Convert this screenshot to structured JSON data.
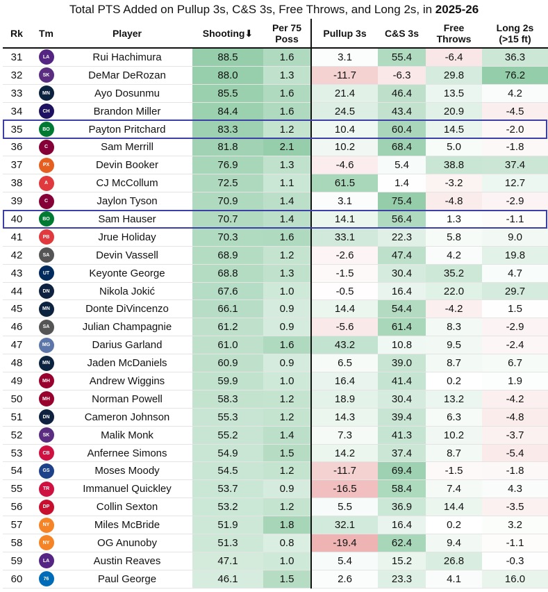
{
  "title_main": "Total PTS Added on Pullup 3s, C&S 3s, Free Throws, and Long 2s, in ",
  "title_season": "2025-26",
  "columns": [
    "Rk",
    "Tm",
    "Player",
    "Shooting⬇",
    "Per 75 Poss",
    "Pullup 3s",
    "C&S 3s",
    "Free Throws",
    "Long 2s (>15 ft)"
  ],
  "highlighted_players": [
    "Payton Pritchard",
    "Sam Hauser"
  ],
  "team_colors": {
    "LAL": "#552583",
    "SAC": "#5a2d81",
    "MIN": "#0c2340",
    "CHA": "#1d1160",
    "BOS": "#007a33",
    "CLE": "#860038",
    "PHX": "#e56020",
    "ATL": "#e03a3e",
    "POR": "#e03a3e",
    "SAS": "#555555",
    "UTA": "#002b5c",
    "DEN": "#0e2240",
    "MEM": "#5d76a9",
    "DAL": "#00538c",
    "MIA": "#98002e",
    "CHI": "#ce1141",
    "GSW": "#1d428a",
    "TOR": "#ce1141",
    "DET": "#c8102e",
    "NYK": "#f58426",
    "PHI": "#006bb6"
  },
  "chart_data": {
    "type": "table",
    "title": "Total PTS Added on Pullup 3s, C&S 3s, Free Throws, and Long 2s, in 2025-26",
    "sort_column": "Shooting",
    "rows": [
      {
        "rk": 31,
        "team": "LAL",
        "player": "Rui Hachimura",
        "shooting": 88.5,
        "per75": 1.6,
        "pullup3": 3.1,
        "cs3": 55.4,
        "ft": -6.4,
        "long2": 36.3
      },
      {
        "rk": 32,
        "team": "SAC",
        "player": "DeMar DeRozan",
        "shooting": 88.0,
        "per75": 1.3,
        "pullup3": -11.7,
        "cs3": -6.3,
        "ft": 29.8,
        "long2": 76.2
      },
      {
        "rk": 33,
        "team": "MIN",
        "player": "Ayo Dosunmu",
        "shooting": 85.5,
        "per75": 1.6,
        "pullup3": 21.4,
        "cs3": 46.4,
        "ft": 13.5,
        "long2": 4.2
      },
      {
        "rk": 34,
        "team": "CHA",
        "player": "Brandon Miller",
        "shooting": 84.4,
        "per75": 1.6,
        "pullup3": 24.5,
        "cs3": 43.4,
        "ft": 20.9,
        "long2": -4.5
      },
      {
        "rk": 35,
        "team": "BOS",
        "player": "Payton Pritchard",
        "shooting": 83.3,
        "per75": 1.2,
        "pullup3": 10.4,
        "cs3": 60.4,
        "ft": 14.5,
        "long2": -2.0
      },
      {
        "rk": 36,
        "team": "CLE",
        "player": "Sam Merrill",
        "shooting": 81.8,
        "per75": 2.1,
        "pullup3": 10.2,
        "cs3": 68.4,
        "ft": 5.0,
        "long2": -1.8
      },
      {
        "rk": 37,
        "team": "PHX",
        "player": "Devin Booker",
        "shooting": 76.9,
        "per75": 1.3,
        "pullup3": -4.6,
        "cs3": 5.4,
        "ft": 38.8,
        "long2": 37.4
      },
      {
        "rk": 38,
        "team": "ATL",
        "player": "CJ McCollum",
        "shooting": 72.5,
        "per75": 1.1,
        "pullup3": 61.5,
        "cs3": 1.4,
        "ft": -3.2,
        "long2": 12.7
      },
      {
        "rk": 39,
        "team": "CLE",
        "player": "Jaylon Tyson",
        "shooting": 70.9,
        "per75": 1.4,
        "pullup3": 3.1,
        "cs3": 75.4,
        "ft": -4.8,
        "long2": -2.9
      },
      {
        "rk": 40,
        "team": "BOS",
        "player": "Sam Hauser",
        "shooting": 70.7,
        "per75": 1.4,
        "pullup3": 14.1,
        "cs3": 56.4,
        "ft": 1.3,
        "long2": -1.1
      },
      {
        "rk": 41,
        "team": "POR",
        "player": "Jrue Holiday",
        "shooting": 70.3,
        "per75": 1.6,
        "pullup3": 33.1,
        "cs3": 22.3,
        "ft": 5.8,
        "long2": 9.0
      },
      {
        "rk": 42,
        "team": "SAS",
        "player": "Devin Vassell",
        "shooting": 68.9,
        "per75": 1.2,
        "pullup3": -2.6,
        "cs3": 47.4,
        "ft": 4.2,
        "long2": 19.8
      },
      {
        "rk": 43,
        "team": "UTA",
        "player": "Keyonte George",
        "shooting": 68.8,
        "per75": 1.3,
        "pullup3": -1.5,
        "cs3": 30.4,
        "ft": 35.2,
        "long2": 4.7
      },
      {
        "rk": 44,
        "team": "DEN",
        "player": "Nikola Jokić",
        "shooting": 67.6,
        "per75": 1.0,
        "pullup3": -0.5,
        "cs3": 16.4,
        "ft": 22.0,
        "long2": 29.7
      },
      {
        "rk": 45,
        "team": "MIN",
        "player": "Donte DiVincenzo",
        "shooting": 66.1,
        "per75": 0.9,
        "pullup3": 14.4,
        "cs3": 54.4,
        "ft": -4.2,
        "long2": 1.5
      },
      {
        "rk": 46,
        "team": "SAS",
        "player": "Julian Champagnie",
        "shooting": 61.2,
        "per75": 0.9,
        "pullup3": -5.6,
        "cs3": 61.4,
        "ft": 8.3,
        "long2": -2.9
      },
      {
        "rk": 47,
        "team": "MEM",
        "player": "Darius Garland",
        "shooting": 61.0,
        "per75": 1.6,
        "pullup3": 43.2,
        "cs3": 10.8,
        "ft": 9.5,
        "long2": -2.4
      },
      {
        "rk": 48,
        "team": "MIN",
        "player": "Jaden McDaniels",
        "shooting": 60.9,
        "per75": 0.9,
        "pullup3": 6.5,
        "cs3": 39.0,
        "ft": 8.7,
        "long2": 6.7
      },
      {
        "rk": 49,
        "team": "MIA",
        "player": "Andrew Wiggins",
        "shooting": 59.9,
        "per75": 1.0,
        "pullup3": 16.4,
        "cs3": 41.4,
        "ft": 0.2,
        "long2": 1.9
      },
      {
        "rk": 50,
        "team": "MIA",
        "player": "Norman Powell",
        "shooting": 58.3,
        "per75": 1.2,
        "pullup3": 18.9,
        "cs3": 30.4,
        "ft": 13.2,
        "long2": -4.2
      },
      {
        "rk": 51,
        "team": "DEN",
        "player": "Cameron Johnson",
        "shooting": 55.3,
        "per75": 1.2,
        "pullup3": 14.3,
        "cs3": 39.4,
        "ft": 6.3,
        "long2": -4.8
      },
      {
        "rk": 52,
        "team": "SAC",
        "player": "Malik Monk",
        "shooting": 55.2,
        "per75": 1.4,
        "pullup3": 7.3,
        "cs3": 41.3,
        "ft": 10.2,
        "long2": -3.7
      },
      {
        "rk": 53,
        "team": "CHI",
        "player": "Anfernee Simons",
        "shooting": 54.9,
        "per75": 1.5,
        "pullup3": 14.2,
        "cs3": 37.4,
        "ft": 8.7,
        "long2": -5.4
      },
      {
        "rk": 54,
        "team": "GSW",
        "player": "Moses Moody",
        "shooting": 54.5,
        "per75": 1.2,
        "pullup3": -11.7,
        "cs3": 69.4,
        "ft": -1.5,
        "long2": -1.8
      },
      {
        "rk": 55,
        "team": "TOR",
        "player": "Immanuel Quickley",
        "shooting": 53.7,
        "per75": 0.9,
        "pullup3": -16.5,
        "cs3": 58.4,
        "ft": 7.4,
        "long2": 4.3
      },
      {
        "rk": 56,
        "team": "DET",
        "player": "Collin Sexton",
        "shooting": 53.2,
        "per75": 1.2,
        "pullup3": 5.5,
        "cs3": 36.9,
        "ft": 14.4,
        "long2": -3.5
      },
      {
        "rk": 57,
        "team": "NYK",
        "player": "Miles McBride",
        "shooting": 51.9,
        "per75": 1.8,
        "pullup3": 32.1,
        "cs3": 16.4,
        "ft": 0.2,
        "long2": 3.2
      },
      {
        "rk": 58,
        "team": "NYK",
        "player": "OG Anunoby",
        "shooting": 51.3,
        "per75": 0.8,
        "pullup3": -19.4,
        "cs3": 62.4,
        "ft": 9.4,
        "long2": -1.1
      },
      {
        "rk": 59,
        "team": "LAL",
        "player": "Austin Reaves",
        "shooting": 47.1,
        "per75": 1.0,
        "pullup3": 5.4,
        "cs3": 15.2,
        "ft": 26.8,
        "long2": -0.3
      },
      {
        "rk": 60,
        "team": "PHI",
        "player": "Paul George",
        "shooting": 46.1,
        "per75": 1.5,
        "pullup3": 2.6,
        "cs3": 23.3,
        "ft": 4.1,
        "long2": 16.0
      }
    ]
  }
}
